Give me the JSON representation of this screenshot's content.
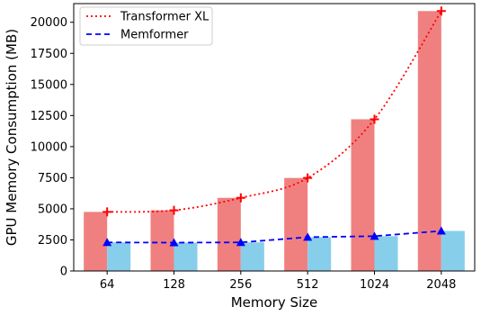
{
  "chart_data": {
    "type": "bar",
    "title": "",
    "xlabel": "Memory Size",
    "ylabel": "GPU Memory Consumption (MB)",
    "ylim": [
      0,
      21500
    ],
    "yticks": [
      0,
      2500,
      5000,
      7500,
      10000,
      12500,
      15000,
      17500,
      20000
    ],
    "categories": [
      "64",
      "128",
      "256",
      "512",
      "1024",
      "2048"
    ],
    "grid": false,
    "legend_position": "top-left",
    "series": [
      {
        "name": "Transformer XL",
        "type": "bar+line",
        "values": [
          4750,
          4880,
          5880,
          7480,
          12200,
          20900
        ],
        "bar_color": "#f08080",
        "line_color": "#ff0000",
        "line_style": "dotted",
        "marker": "plus"
      },
      {
        "name": "Memformer",
        "type": "bar+line",
        "values": [
          2300,
          2280,
          2300,
          2720,
          2800,
          3220
        ],
        "bar_color": "#87ceeb",
        "line_color": "#0000ff",
        "line_style": "dashed",
        "marker": "triangle"
      }
    ]
  }
}
